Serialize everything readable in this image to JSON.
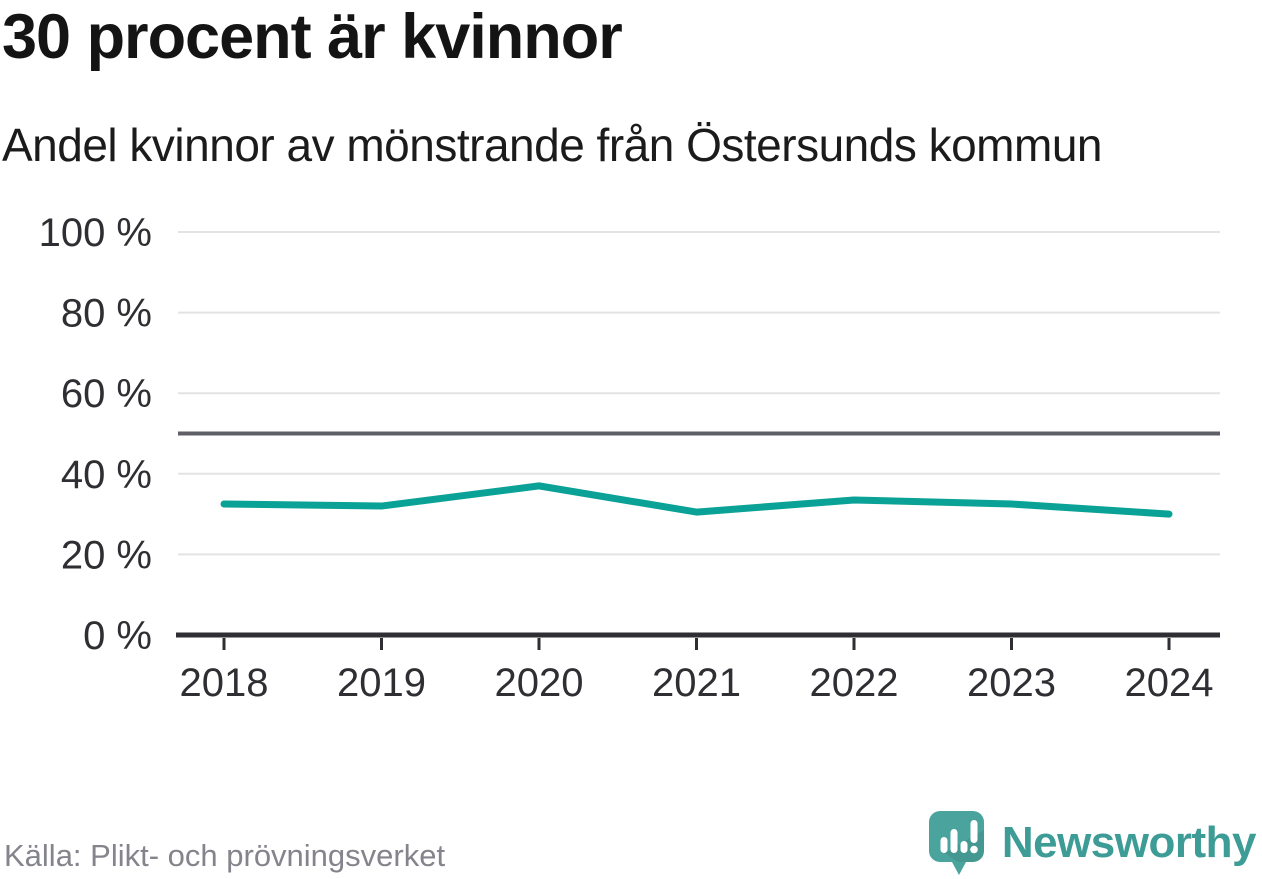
{
  "header": {
    "title": "30 procent är kvinnor",
    "subtitle": "Andel kvinnor av mönstrande från Östersunds kommun"
  },
  "chart_data": {
    "type": "line",
    "title": "30 procent är kvinnor",
    "subtitle": "Andel kvinnor av mönstrande från Östersunds kommun",
    "x": [
      "2018",
      "2019",
      "2020",
      "2021",
      "2022",
      "2023",
      "2024"
    ],
    "series": [
      {
        "name": "Andel kvinnor av mönstrande",
        "values": [
          32.5,
          32,
          37,
          30.5,
          33.5,
          32.5,
          30
        ]
      }
    ],
    "unit": "%",
    "ylim": [
      0,
      100
    ],
    "y_ticks": [
      0,
      20,
      40,
      60,
      80,
      100
    ],
    "y_tick_labels": [
      "0 %",
      "20 %",
      "40 %",
      "60 %",
      "80 %",
      "100 %"
    ],
    "reference_line": {
      "value": 50,
      "color": "#5f5f67"
    },
    "grid": true,
    "legend": "none",
    "line_color": "#0aa296",
    "gridline_color": "#e3e3e3",
    "axis_color": "#2e2e33",
    "label_color": "#2e2e33"
  },
  "footer": {
    "source": "Källa: Plikt- och prövningsverket",
    "brand": "Newsworthy",
    "brand_color": "#3d9c95",
    "logo_color": "#4aa49d"
  }
}
